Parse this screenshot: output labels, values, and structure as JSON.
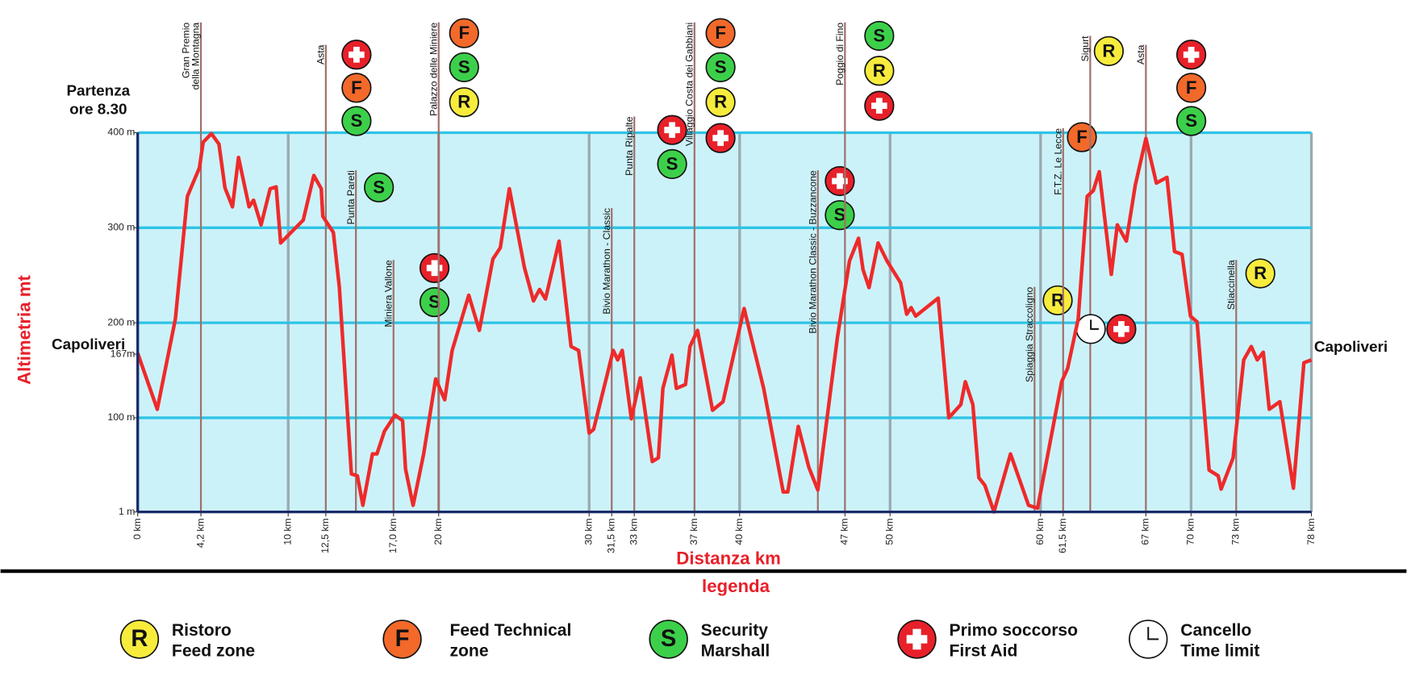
{
  "chart_data": {
    "type": "line",
    "title_lines": [
      "Partenza",
      "ore 8.30"
    ],
    "start_label": "Capoliveri",
    "end_label": "Capoliveri",
    "y_label": "Altimetria mt",
    "x_label": "Distanza km",
    "xlim": [
      0,
      78
    ],
    "ylim": [
      1,
      400
    ],
    "xticks": [
      {
        "value": 0,
        "label": "0 km"
      },
      {
        "value": 4.2,
        "label": "4,2 km"
      },
      {
        "value": 10,
        "label": "10 km"
      },
      {
        "value": 12.5,
        "label": "12,5 km"
      },
      {
        "value": 17,
        "label": "17,0 km"
      },
      {
        "value": 20,
        "label": "20 km"
      },
      {
        "value": 30,
        "label": "30 km"
      },
      {
        "value": 31.5,
        "label": "31,5 km"
      },
      {
        "value": 33,
        "label": "33 km"
      },
      {
        "value": 37,
        "label": "37 km"
      },
      {
        "value": 40,
        "label": "40 km"
      },
      {
        "value": 47,
        "label": "47 km"
      },
      {
        "value": 50,
        "label": "50 km"
      },
      {
        "value": 60,
        "label": "60 km"
      },
      {
        "value": 61.5,
        "label": "61,5 km"
      },
      {
        "value": 67,
        "label": "67 km"
      },
      {
        "value": 70,
        "label": "70 km"
      },
      {
        "value": 73,
        "label": "73 km"
      },
      {
        "value": 78,
        "label": "78 km"
      }
    ],
    "xgrid": [
      10,
      20,
      30,
      40,
      50,
      60,
      70
    ],
    "yticks": [
      {
        "value": 1,
        "label": "1 m"
      },
      {
        "value": 100,
        "label": "100 m"
      },
      {
        "value": 167,
        "label": "167m"
      },
      {
        "value": 200,
        "label": "200 m"
      },
      {
        "value": 300,
        "label": "300 m"
      },
      {
        "value": 400,
        "label": "400 m"
      }
    ],
    "ygrid": [
      100,
      200,
      300,
      400
    ],
    "background": "#ccf2f9",
    "grid_color": "#2ec4e6",
    "series": [
      {
        "color": "#ee2a2a",
        "x": [
          0,
          1.3,
          2.5,
          3.3,
          4.1,
          4.35,
          4.9,
          5.4,
          5.8,
          6.3,
          6.7,
          7.4,
          7.7,
          8.2,
          8.8,
          9.2,
          9.5,
          11,
          11.7,
          12.2,
          12.3,
          13,
          13.4,
          14.2,
          14.6,
          14.96,
          15.6,
          15.9,
          16.4,
          17.1,
          17.6,
          17.8,
          18.3,
          19,
          19.8,
          20.4,
          20.9,
          22,
          22.7,
          23.6,
          24.1,
          24.7,
          25.7,
          26.3,
          26.7,
          27.1,
          28,
          28.8,
          29.3,
          30,
          30.3,
          31.6,
          31.9,
          32.2,
          32.8,
          33.4,
          34.2,
          34.6,
          34.9,
          35.5,
          35.8,
          36.4,
          36.7,
          37.2,
          38.2,
          38.9,
          40.3,
          41.6,
          42.9,
          43.2,
          43.9,
          44.6,
          45.2,
          46.5,
          47.3,
          47.9,
          48.2,
          48.6,
          49.2,
          49.8,
          50.7,
          51.1,
          51.4,
          51.7,
          53.2,
          53.9,
          54.7,
          55,
          55.5,
          55.9,
          56.3,
          56.9,
          58,
          59.2,
          59.8,
          61.4,
          61.8,
          62.5,
          63.1,
          63.5,
          63.9,
          64.7,
          65.1,
          65.7,
          66.3,
          67,
          67.7,
          68.4,
          68.9,
          69.4,
          69.96,
          70.4,
          71.2,
          71.8,
          72,
          72.8,
          73.5,
          74,
          74.4,
          74.8,
          75.2,
          75.9,
          76.8,
          77.5,
          78
        ],
        "values": [
          168,
          109,
          204,
          333,
          363,
          390,
          399,
          388,
          342,
          322,
          374,
          322,
          329,
          303,
          341,
          343,
          284,
          308,
          355,
          341,
          312,
          295,
          237,
          41,
          39,
          8,
          62,
          62,
          86,
          103,
          97,
          46,
          8,
          62,
          141,
          119,
          171,
          229,
          192,
          267,
          279,
          341,
          258,
          223,
          235,
          225,
          286,
          175,
          171,
          84,
          88,
          171,
          161,
          171,
          99,
          142,
          54,
          58,
          131,
          166,
          131,
          135,
          175,
          192,
          108,
          117,
          215,
          131,
          22,
          22,
          91,
          48,
          24,
          185,
          265,
          289,
          256,
          237,
          284,
          265,
          242,
          209,
          216,
          207,
          226,
          100,
          114,
          138,
          114,
          37,
          29,
          1,
          62,
          8,
          5,
          138,
          152,
          204,
          333,
          339,
          359,
          251,
          303,
          286,
          345,
          394,
          347,
          353,
          275,
          272,
          207,
          201,
          45,
          39,
          25,
          58,
          161,
          175,
          161,
          169,
          109,
          117,
          26,
          158,
          161
        ]
      }
    ],
    "waypoints": [
      {
        "label": [
          "Gran Premio",
          "della Montagna"
        ],
        "km": 4.2,
        "markers": []
      },
      {
        "label": [
          "Asta"
        ],
        "km": 12.5,
        "markers": [
          3,
          1,
          2
        ]
      },
      {
        "label": [
          "Punta Pareti"
        ],
        "km": 14.5,
        "markers": [
          2
        ]
      },
      {
        "label": [
          "Miniera Vallone"
        ],
        "km": 17,
        "markers": [
          3,
          2
        ]
      },
      {
        "label": [
          "Palazzo delle Miniere"
        ],
        "km": 20,
        "markers": [
          1,
          2,
          0
        ]
      },
      {
        "label": [
          "Bivio Marathon - Classic"
        ],
        "km": 31.5,
        "markers": []
      },
      {
        "label": [
          "Punta Ripalte"
        ],
        "km": 33,
        "markers": [
          3,
          2
        ]
      },
      {
        "label": [
          "Villaggio Costa dei Gabbiani"
        ],
        "km": 37,
        "markers": [
          1,
          2,
          0,
          3
        ]
      },
      {
        "label": [
          "Bivio Marathon Classic - Buzzancone"
        ],
        "km": 45.2,
        "markers": [
          3,
          2
        ]
      },
      {
        "label": [
          "Poggio di Fino"
        ],
        "km": 47,
        "markers": [
          2,
          0,
          3
        ]
      },
      {
        "label": [
          "Spiaggia Straccoligno"
        ],
        "km": 59.6,
        "markers": [
          0
        ]
      },
      {
        "label": [
          "F.T.Z. Le Lecce"
        ],
        "km": 61.5,
        "markers": [
          1
        ]
      },
      {
        "label": [
          "Sigurt"
        ],
        "km": 63.3,
        "markers": [
          0,
          4,
          3
        ]
      },
      {
        "label": [
          "Asta"
        ],
        "km": 67,
        "markers": [
          3,
          1,
          2
        ]
      },
      {
        "label": [
          "Stiaccinella"
        ],
        "km": 73,
        "markers": [
          0
        ]
      }
    ]
  },
  "legend": {
    "title": "legenda",
    "items": [
      {
        "symbol": "R",
        "color": "#f7ec3c",
        "text": [
          "Ristoro",
          "Feed zone"
        ]
      },
      {
        "symbol": "F",
        "color": "#f2692a",
        "text": [
          "Feed Technical",
          "zone"
        ]
      },
      {
        "symbol": "S",
        "color": "#3cd04a",
        "text": [
          "Security",
          "Marshall"
        ]
      },
      {
        "shape": "cross",
        "color": "#e8202a",
        "text": [
          "Primo soccorso",
          "First Aid"
        ]
      },
      {
        "shape": "clock",
        "color": "#ffffff",
        "text": [
          "Cancello",
          "Time limit"
        ]
      }
    ]
  }
}
